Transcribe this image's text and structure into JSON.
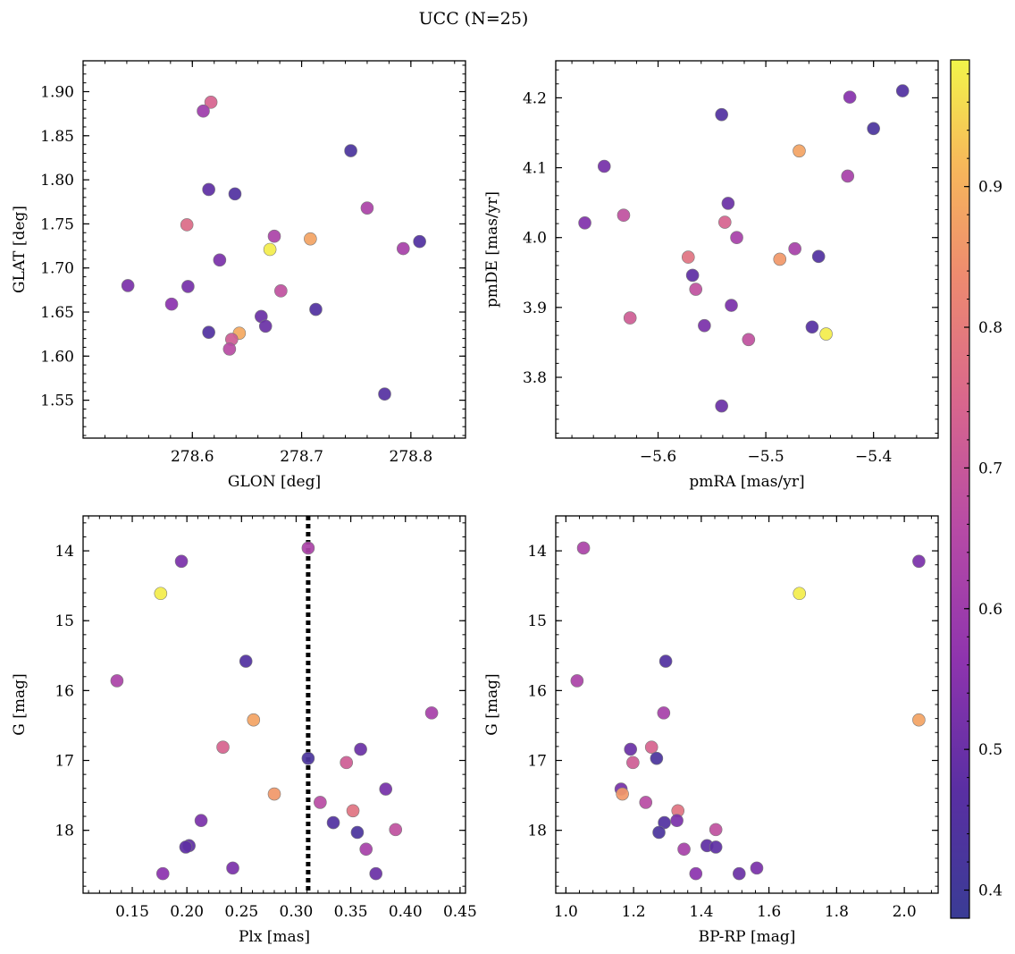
{
  "title": "UCC (N=25)",
  "colorbar": {
    "colormap": "plasma",
    "range": [
      0.38,
      0.99
    ],
    "ticks": [
      0.4,
      0.5,
      0.6,
      0.7,
      0.8,
      0.9
    ],
    "tick_labels": [
      "0.4",
      "0.5",
      "0.6",
      "0.7",
      "0.8",
      "0.9"
    ]
  },
  "chart_data": [
    {
      "type": "scatter",
      "xlabel": "GLON [deg]",
      "ylabel": "GLAT [deg]",
      "xlim": [
        278.5,
        278.85
      ],
      "ylim": [
        1.507,
        1.935
      ],
      "y_inverted": false,
      "xticks": [
        278.6,
        278.7,
        278.8
      ],
      "xtick_labels": [
        "278.6",
        "278.7",
        "278.8"
      ],
      "yticks": [
        1.55,
        1.6,
        1.65,
        1.7,
        1.75,
        1.8,
        1.85,
        1.9
      ],
      "ytick_labels": [
        "1.55",
        "1.60",
        "1.65",
        "1.70",
        "1.75",
        "1.80",
        "1.85",
        "1.90"
      ],
      "x": [
        278.617,
        278.61,
        278.745,
        278.615,
        278.639,
        278.76,
        278.595,
        278.675,
        278.708,
        278.671,
        278.625,
        278.793,
        278.808,
        278.541,
        278.596,
        278.581,
        278.681,
        278.713,
        278.663,
        278.667,
        278.615,
        278.643,
        278.636,
        278.634,
        278.776
      ],
      "y": [
        1.888,
        1.878,
        1.833,
        1.789,
        1.784,
        1.768,
        1.749,
        1.736,
        1.733,
        1.721,
        1.709,
        1.722,
        1.73,
        1.68,
        1.679,
        1.659,
        1.674,
        1.653,
        1.645,
        1.634,
        1.627,
        1.626,
        1.619,
        1.608,
        1.557
      ],
      "color": [
        0.74,
        0.6,
        0.43,
        0.48,
        0.45,
        0.63,
        0.76,
        0.63,
        0.88,
        0.98,
        0.53,
        0.62,
        0.45,
        0.53,
        0.52,
        0.56,
        0.68,
        0.45,
        0.5,
        0.5,
        0.45,
        0.89,
        0.72,
        0.66,
        0.46
      ]
    },
    {
      "type": "scatter",
      "xlabel": "pmRA [mas/yr]",
      "ylabel": "pmDE [mas/yr]",
      "xlim": [
        -5.695,
        -5.34
      ],
      "ylim": [
        3.713,
        4.253
      ],
      "y_inverted": false,
      "xticks": [
        -5.6,
        -5.5,
        -5.4
      ],
      "xtick_labels": [
        "−5.6",
        "−5.5",
        "−5.4"
      ],
      "yticks": [
        3.8,
        3.9,
        4.0,
        4.1,
        4.2
      ],
      "ytick_labels": [
        "3.8",
        "3.9",
        "4.0",
        "4.1",
        "4.2"
      ],
      "x": [
        -5.373,
        -5.422,
        -5.541,
        -5.4,
        -5.469,
        -5.65,
        -5.424,
        -5.535,
        -5.668,
        -5.632,
        -5.538,
        -5.527,
        -5.473,
        -5.572,
        -5.487,
        -5.451,
        -5.568,
        -5.565,
        -5.532,
        -5.626,
        -5.557,
        -5.457,
        -5.516,
        -5.444,
        -5.541
      ],
      "y": [
        4.21,
        4.201,
        4.176,
        4.156,
        4.124,
        4.102,
        4.088,
        4.049,
        4.021,
        4.032,
        4.022,
        4.0,
        3.984,
        3.972,
        3.969,
        3.973,
        3.946,
        3.926,
        3.903,
        3.885,
        3.874,
        3.872,
        3.854,
        3.862,
        3.759
      ],
      "color": [
        0.45,
        0.55,
        0.45,
        0.43,
        0.88,
        0.52,
        0.62,
        0.5,
        0.54,
        0.68,
        0.74,
        0.62,
        0.62,
        0.78,
        0.86,
        0.45,
        0.48,
        0.68,
        0.53,
        0.72,
        0.53,
        0.46,
        0.68,
        0.98,
        0.5
      ]
    },
    {
      "type": "scatter",
      "xlabel": "Plx [mas]",
      "ylabel": "G [mag]",
      "xlim": [
        0.105,
        0.455
      ],
      "ylim": [
        18.9,
        13.5
      ],
      "y_inverted": true,
      "xticks": [
        0.15,
        0.2,
        0.25,
        0.3,
        0.35,
        0.4,
        0.45
      ],
      "xtick_labels": [
        "0.15",
        "0.20",
        "0.25",
        "0.30",
        "0.35",
        "0.40",
        "0.45"
      ],
      "yticks": [
        14,
        15,
        16,
        17,
        18
      ],
      "ytick_labels": [
        "14",
        "15",
        "16",
        "17",
        "18"
      ],
      "vline_x": 0.311,
      "x": [
        0.311,
        0.195,
        0.176,
        0.254,
        0.136,
        0.261,
        0.424,
        0.233,
        0.359,
        0.311,
        0.346,
        0.382,
        0.28,
        0.322,
        0.352,
        0.213,
        0.334,
        0.391,
        0.356,
        0.202,
        0.199,
        0.364,
        0.242,
        0.178,
        0.373
      ],
      "y": [
        13.96,
        14.15,
        14.61,
        15.58,
        15.86,
        16.42,
        16.32,
        16.81,
        16.84,
        16.97,
        17.03,
        17.41,
        17.48,
        17.6,
        17.72,
        17.86,
        17.89,
        17.99,
        18.03,
        18.22,
        18.24,
        18.27,
        18.54,
        18.62,
        18.62
      ],
      "color": [
        0.63,
        0.53,
        0.98,
        0.45,
        0.63,
        0.88,
        0.62,
        0.74,
        0.5,
        0.43,
        0.72,
        0.52,
        0.86,
        0.66,
        0.78,
        0.53,
        0.45,
        0.68,
        0.43,
        0.48,
        0.48,
        0.62,
        0.53,
        0.56,
        0.5
      ]
    },
    {
      "type": "scatter",
      "xlabel": "BP-RP [mag]",
      "ylabel": "G [mag]",
      "xlim": [
        0.97,
        2.1
      ],
      "ylim": [
        18.9,
        13.5
      ],
      "y_inverted": true,
      "xticks": [
        1.0,
        1.2,
        1.4,
        1.6,
        1.8,
        2.0
      ],
      "xtick_labels": [
        "1.0",
        "1.2",
        "1.4",
        "1.6",
        "1.8",
        "2.0"
      ],
      "yticks": [
        14,
        15,
        16,
        17,
        18
      ],
      "ytick_labels": [
        "14",
        "15",
        "16",
        "17",
        "18"
      ],
      "x": [
        1.052,
        2.043,
        1.69,
        1.295,
        1.033,
        2.043,
        1.289,
        1.253,
        1.191,
        1.268,
        1.198,
        1.163,
        1.167,
        1.236,
        1.331,
        1.328,
        1.291,
        1.443,
        1.275,
        1.417,
        1.443,
        1.349,
        1.564,
        1.384,
        1.512
      ],
      "y": [
        13.96,
        14.15,
        14.61,
        15.58,
        15.86,
        16.42,
        16.32,
        16.81,
        16.84,
        16.97,
        17.03,
        17.41,
        17.48,
        17.6,
        17.72,
        17.86,
        17.89,
        17.99,
        18.03,
        18.22,
        18.24,
        18.27,
        18.54,
        18.62,
        18.62
      ],
      "color": [
        0.63,
        0.53,
        0.98,
        0.45,
        0.63,
        0.88,
        0.62,
        0.74,
        0.5,
        0.43,
        0.72,
        0.52,
        0.86,
        0.66,
        0.78,
        0.53,
        0.45,
        0.68,
        0.43,
        0.48,
        0.48,
        0.62,
        0.53,
        0.56,
        0.5
      ]
    }
  ]
}
